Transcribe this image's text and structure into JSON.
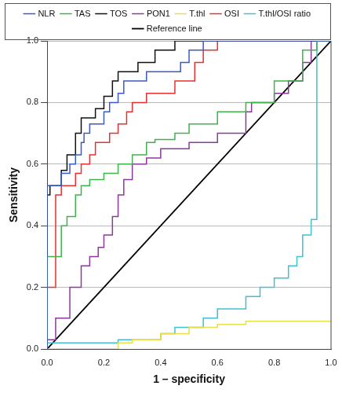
{
  "chart_data": {
    "type": "line",
    "x_label": "1 – specificity",
    "y_label": "Sensitivity",
    "xlim": [
      0,
      1
    ],
    "ylim": [
      0,
      1
    ],
    "xticks": [
      {
        "value": 0,
        "label": "0.0"
      },
      0.2,
      0.4,
      0.6,
      0.8,
      {
        "value": 1,
        "label": "1.0"
      }
    ],
    "yticks": [
      {
        "value": 0,
        "label": "0.0"
      },
      0.2,
      0.4,
      0.6,
      0.8,
      {
        "value": 1,
        "label": "1.0"
      }
    ],
    "grid": "y",
    "legend": "top",
    "series": [
      {
        "name": "NLR",
        "color": "#3a5bc7",
        "line_style": "steps",
        "x": [
          0,
          0,
          0.05,
          0.08,
          0.1,
          0.12,
          0.13,
          0.15,
          0.2,
          0.22,
          0.25,
          0.27,
          0.35,
          0.47,
          0.5,
          0.55,
          0.62,
          1
        ],
        "values": [
          0,
          0.5,
          0.53,
          0.57,
          0.6,
          0.63,
          0.67,
          0.7,
          0.73,
          0.77,
          0.8,
          0.83,
          0.87,
          0.9,
          0.93,
          0.97,
          1.0,
          1.0
        ]
      },
      {
        "name": "TAS",
        "color": "#3cb44b",
        "line_style": "steps",
        "x": [
          0,
          0,
          0.05,
          0.07,
          0.1,
          0.12,
          0.15,
          0.2,
          0.25,
          0.3,
          0.35,
          0.38,
          0.45,
          0.5,
          0.6,
          0.7,
          0.8,
          0.9,
          0.95,
          0.97,
          1
        ],
        "values": [
          0,
          0.2,
          0.3,
          0.4,
          0.43,
          0.5,
          0.53,
          0.55,
          0.57,
          0.6,
          0.63,
          0.67,
          0.68,
          0.7,
          0.73,
          0.77,
          0.8,
          0.87,
          0.97,
          1.0,
          1.0
        ]
      },
      {
        "name": "TOS",
        "color": "#111111",
        "line_style": "steps",
        "x": [
          0,
          0,
          0.01,
          0.05,
          0.07,
          0.1,
          0.12,
          0.17,
          0.2,
          0.23,
          0.25,
          0.32,
          0.38,
          0.45,
          0.5,
          1
        ],
        "values": [
          0,
          0.23,
          0.5,
          0.53,
          0.58,
          0.63,
          0.7,
          0.75,
          0.78,
          0.82,
          0.87,
          0.9,
          0.93,
          0.97,
          1.0,
          1.0
        ]
      },
      {
        "name": "PON1",
        "color": "#8b3a9b",
        "line_style": "steps",
        "x": [
          0,
          0.03,
          0.08,
          0.12,
          0.15,
          0.18,
          0.2,
          0.23,
          0.25,
          0.27,
          0.3,
          0.35,
          0.4,
          0.5,
          0.6,
          0.7,
          0.72,
          0.8,
          0.85,
          0.9,
          0.93,
          0.97,
          1
        ],
        "values": [
          0,
          0.03,
          0.1,
          0.2,
          0.27,
          0.3,
          0.33,
          0.37,
          0.43,
          0.5,
          0.55,
          0.6,
          0.62,
          0.65,
          0.67,
          0.7,
          0.77,
          0.8,
          0.83,
          0.87,
          0.93,
          1.0,
          1.0
        ]
      },
      {
        "name": "T.thl",
        "color": "#e8e04a",
        "line_style": "steps",
        "x": [
          0,
          0.25,
          0.3,
          0.4,
          0.5,
          0.6,
          0.7,
          0.8,
          1
        ],
        "values": [
          0,
          0,
          0.02,
          0.03,
          0.05,
          0.07,
          0.08,
          0.09,
          0.09
        ]
      },
      {
        "name": "OSI",
        "color": "#e83030",
        "line_style": "steps",
        "x": [
          0,
          0.03,
          0.05,
          0.1,
          0.12,
          0.15,
          0.17,
          0.22,
          0.25,
          0.28,
          0.3,
          0.35,
          0.45,
          0.52,
          0.55,
          0.6,
          0.65,
          1
        ],
        "values": [
          0,
          0.2,
          0.5,
          0.53,
          0.57,
          0.6,
          0.63,
          0.67,
          0.7,
          0.73,
          0.77,
          0.8,
          0.83,
          0.87,
          0.93,
          0.97,
          1.0,
          1.0
        ]
      },
      {
        "name": "T.thl/OSI ratio",
        "color": "#40c0d0",
        "line_style": "steps",
        "x": [
          0,
          0.25,
          0.4,
          0.45,
          0.55,
          0.6,
          0.7,
          0.75,
          0.8,
          0.85,
          0.88,
          0.9,
          0.93,
          0.95,
          0.96,
          1
        ],
        "values": [
          0,
          0.02,
          0.03,
          0.05,
          0.07,
          0.1,
          0.13,
          0.17,
          0.2,
          0.23,
          0.27,
          0.3,
          0.37,
          0.42,
          1.0,
          1.0
        ]
      },
      {
        "name": "Reference line",
        "color": "#000000",
        "line_style": "solid",
        "x": [
          0,
          1
        ],
        "values": [
          0,
          1
        ]
      }
    ]
  }
}
